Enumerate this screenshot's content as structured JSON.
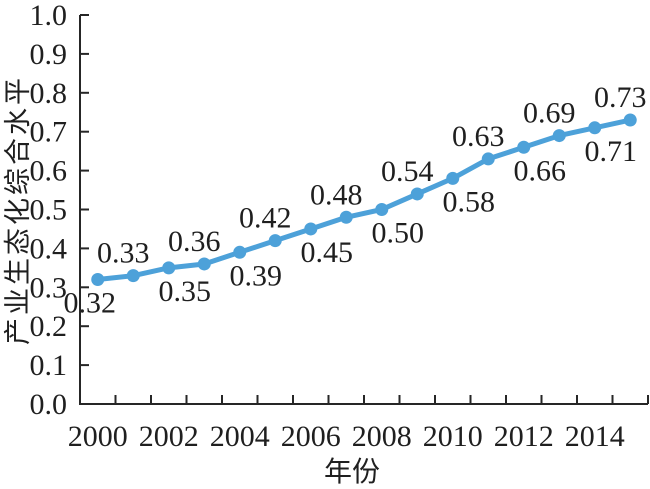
{
  "chart_data": {
    "type": "line",
    "x": [
      2000,
      2001,
      2002,
      2003,
      2004,
      2005,
      2006,
      2007,
      2008,
      2009,
      2010,
      2011,
      2012,
      2013,
      2014,
      2015
    ],
    "values": [
      0.32,
      0.33,
      0.35,
      0.36,
      0.39,
      0.42,
      0.45,
      0.48,
      0.5,
      0.54,
      0.58,
      0.63,
      0.66,
      0.69,
      0.71,
      0.73
    ],
    "point_labels": [
      "0.32",
      "0.33",
      "0.35",
      "0.36",
      "0.39",
      "0.42",
      "0.45",
      "0.48",
      "0.50",
      "0.54",
      "0.58",
      "0.63",
      "0.66",
      "0.69",
      "0.71",
      "0.73"
    ],
    "label_side": [
      "below",
      "above",
      "below",
      "above",
      "below",
      "above",
      "below",
      "above",
      "below",
      "above",
      "below",
      "above",
      "below",
      "above",
      "below",
      "above"
    ],
    "title": "",
    "xlabel": "年份",
    "ylabel": "产业生态化综合水平",
    "ylim": [
      0.0,
      1.0
    ],
    "ytick_step": 0.1,
    "yticks": [
      "0.0",
      "0.1",
      "0.2",
      "0.3",
      "0.4",
      "0.5",
      "0.6",
      "0.7",
      "0.8",
      "0.9",
      "1.0"
    ],
    "xtick_labels": [
      "2000",
      "2002",
      "2004",
      "2006",
      "2008",
      "2010",
      "2012",
      "2014"
    ],
    "grid": "off",
    "legend": "none",
    "line_color": "#4da1d9",
    "axis_color": "#262626",
    "text_color": "#1f1f1f",
    "background": "#ffffff"
  }
}
